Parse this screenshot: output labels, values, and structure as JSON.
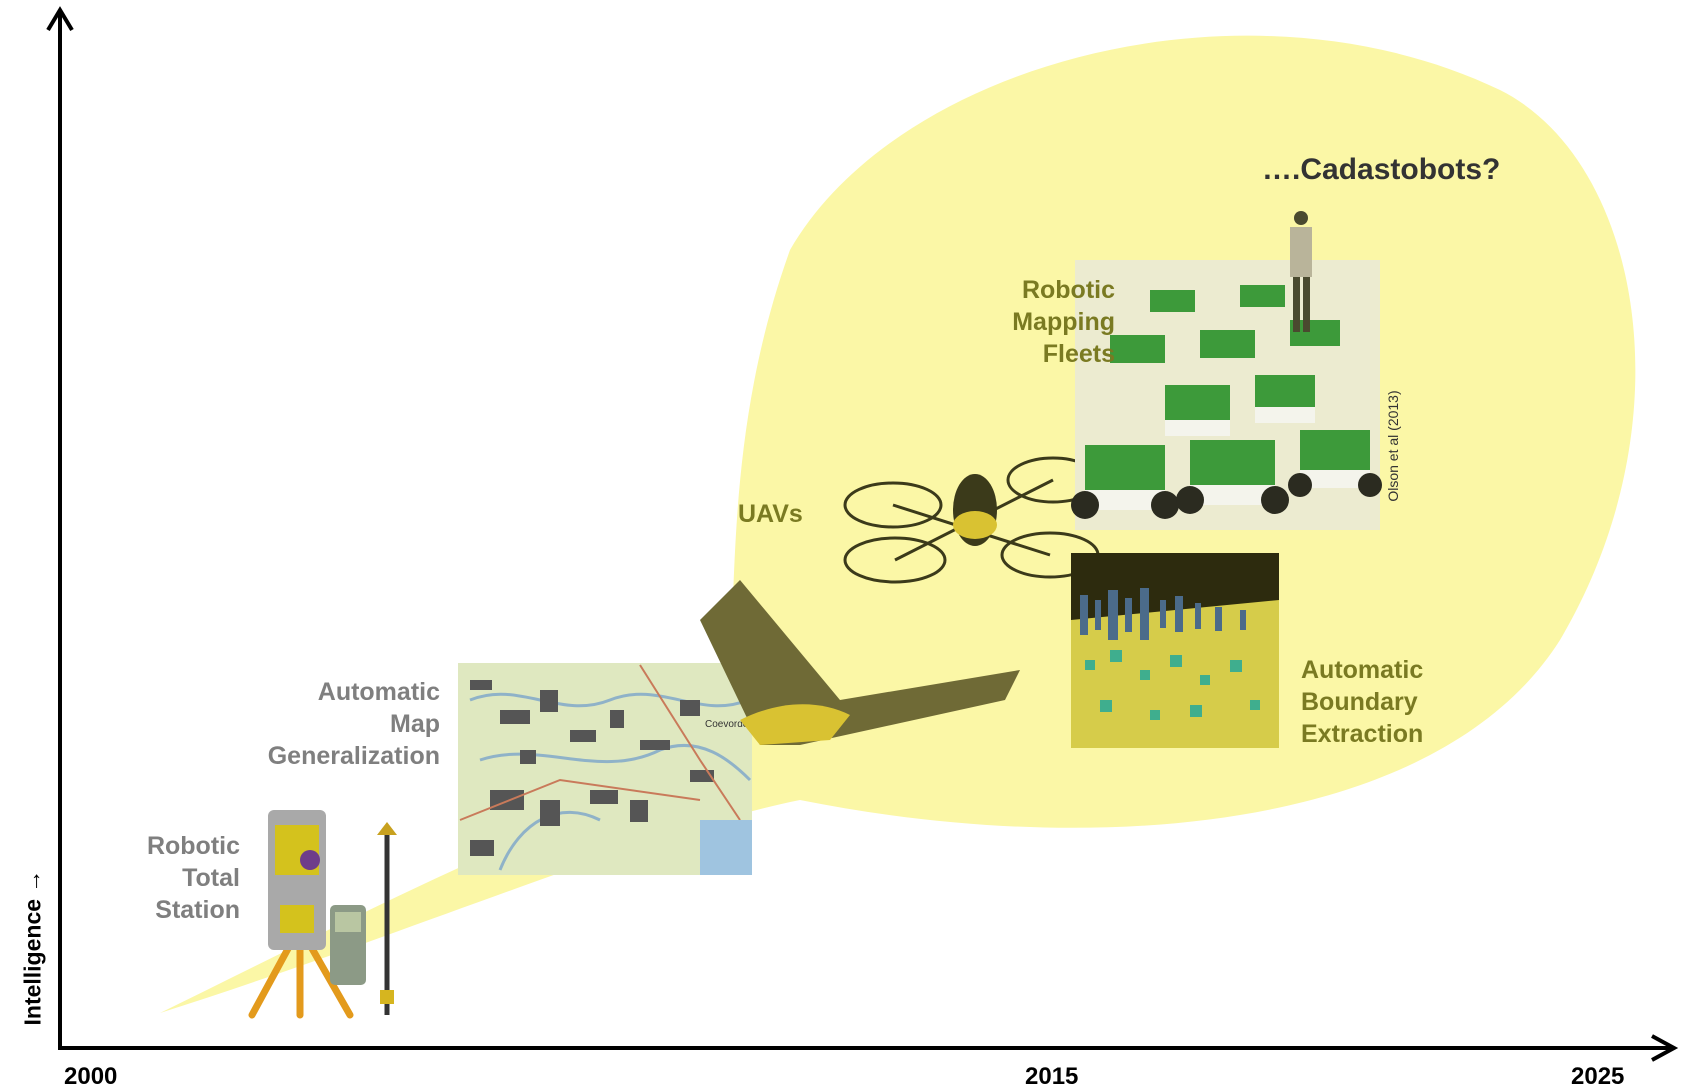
{
  "axes": {
    "y_label": "Intelligence →",
    "x_ticks": [
      "2000",
      "2015",
      "2025"
    ]
  },
  "labels": {
    "rts": [
      "Robotic",
      "Total",
      "Station"
    ],
    "amg": [
      "Automatic",
      "Map",
      "Generalization"
    ],
    "uavs": "UAVs",
    "fleets": [
      "Robotic",
      "Mapping",
      "Fleets"
    ],
    "abe": [
      "Automatic",
      "Boundary",
      "Extraction"
    ],
    "cadastobots": "….Cadastobots?",
    "credit": "Olson et al (2013)"
  },
  "map_text": "Coevorden",
  "colors": {
    "bubble": "#fbf7a6",
    "gray_text": "#7f7f7f",
    "olive_text": "#7a7a22",
    "dark_text": "#333333",
    "axis": "#000000"
  },
  "icons": [
    "total-station-icon",
    "tripod-icon",
    "prism-pole-icon",
    "controller-icon",
    "map-image",
    "fixed-wing-uav-icon",
    "quadcopter-icon",
    "robot-fleet-image",
    "person-icon",
    "city-3d-model-image"
  ]
}
